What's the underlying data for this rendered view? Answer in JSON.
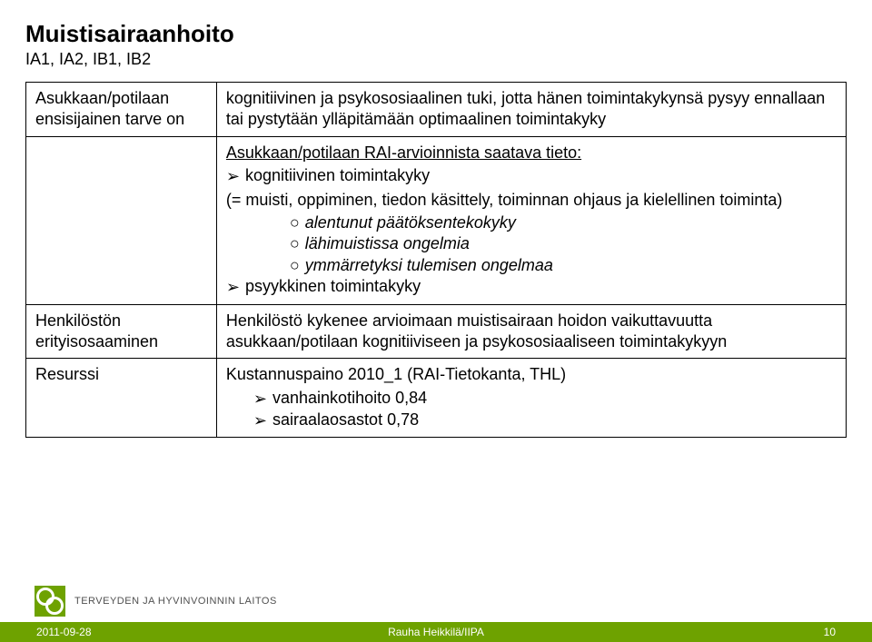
{
  "title": "Muistisairaanhoito",
  "subtitle": "IA1, IA2, IB1, IB2",
  "rows": {
    "r1": {
      "left_l1": "Asukkaan/potilaan",
      "left_l2": "ensisijainen tarve on",
      "right": "kognitiivinen ja psykososiaalinen tuki, jotta hänen toimintakykynsä pysyy ennallaan tai pystytään ylläpitämään optimaalinen toimintakyky"
    },
    "r2": {
      "rai_line": "Asukkaan/potilaan RAI-arvioinnista saatava tieto:",
      "arrow1": "kognitiivinen toimintakyky",
      "paren": "(= muisti, oppiminen, tiedon käsittely, toiminnan ohjaus ja kielellinen toiminta)",
      "sub1": "alentunut päätöksentekokyky",
      "sub2": "lähimuistissa ongelmia",
      "sub3": "ymmärretyksi tulemisen ongelmaa",
      "arrow2": "psyykkinen toimintakyky"
    },
    "r3": {
      "left_l1": "Henkilöstön",
      "left_l2": "erityisosaaminen",
      "right": "Henkilöstö kykenee arvioimaan muistisairaan hoidon vaikuttavuutta asukkaan/potilaan kognitiiviseen ja psykososiaaliseen toimintakykyyn"
    },
    "r4": {
      "left": "Resurssi",
      "line1": "Kustannuspaino 2010_1 (RAI-Tietokanta, THL)",
      "a1": "vanhainkotihoito 0,84",
      "a2": "sairaalaosastot  0,78"
    }
  },
  "footer": {
    "date": "2011-09-28",
    "author": "Rauha Heikkilä/IIPA",
    "page": "10",
    "org": "TERVEYDEN JA HYVINVOINNIN LAITOS"
  },
  "colors": {
    "accent": "#6ea200",
    "text": "#000000",
    "footer_text": "#ffffff"
  }
}
